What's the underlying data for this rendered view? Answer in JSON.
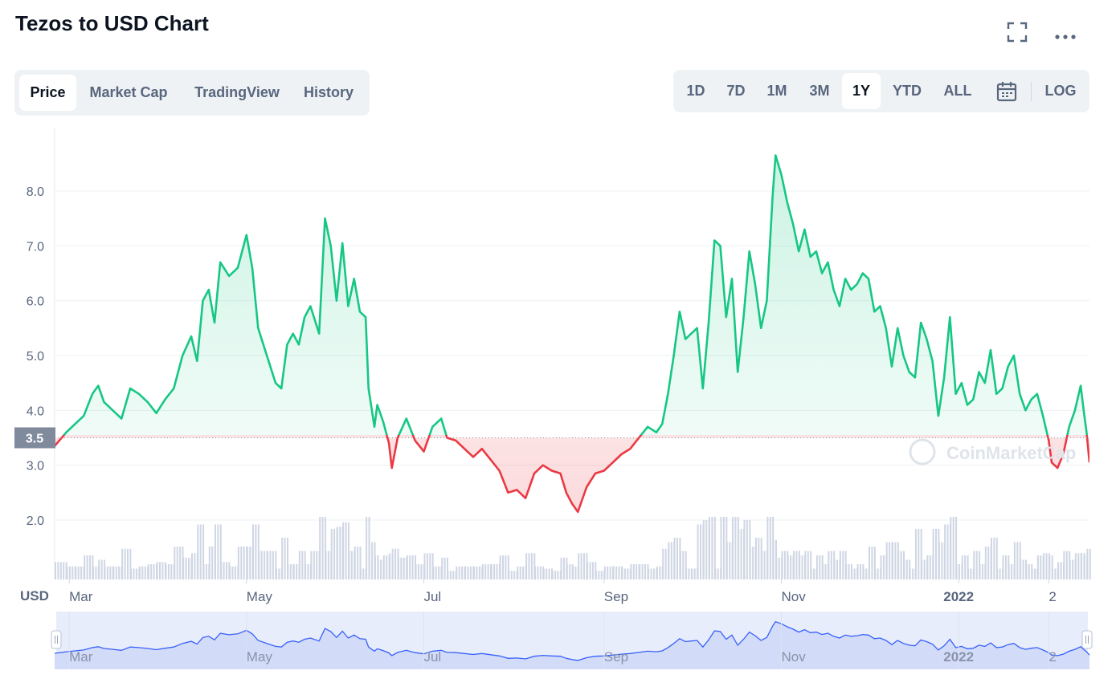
{
  "header": {
    "title": "Tezos to USD Chart",
    "fullscreen_icon": "fullscreen-icon",
    "more_icon": "more-dots-icon"
  },
  "tabs": [
    {
      "label": "Price",
      "active": true
    },
    {
      "label": "Market Cap",
      "active": false
    },
    {
      "label": "TradingView",
      "active": false
    },
    {
      "label": "History",
      "active": false
    }
  ],
  "ranges": [
    {
      "label": "1D",
      "active": false
    },
    {
      "label": "7D",
      "active": false
    },
    {
      "label": "1M",
      "active": false
    },
    {
      "label": "3M",
      "active": false
    },
    {
      "label": "1Y",
      "active": true
    },
    {
      "label": "YTD",
      "active": false
    },
    {
      "label": "ALL",
      "active": false
    }
  ],
  "range_calendar_icon": "calendar-icon",
  "log_label": "LOG",
  "currency_label": "USD",
  "watermark": "CoinMarketCap",
  "colors": {
    "up": "#16c784",
    "down": "#ea3943",
    "navigator_line": "#3861fb",
    "volume": "#cfd6e4"
  },
  "chart_data": {
    "type": "line",
    "title": "Tezos to USD Chart",
    "ylabel": "USD",
    "ylim": [
      1.0,
      9.0
    ],
    "yticks": [
      2.0,
      3.0,
      4.0,
      5.0,
      6.0,
      7.0,
      8.0
    ],
    "ytick_labels": [
      "2.0",
      "3.0",
      "4.0",
      "5.0",
      "6.0",
      "7.0",
      "8.0"
    ],
    "baseline": 3.5,
    "baseline_label": "3.5",
    "xlim": [
      "2021-02-24",
      "2022-02-15"
    ],
    "x_ticks": [
      {
        "date": "2021-03-01",
        "label": "Mar",
        "bold": false
      },
      {
        "date": "2021-05-01",
        "label": "May",
        "bold": false
      },
      {
        "date": "2021-07-01",
        "label": "Jul",
        "bold": false
      },
      {
        "date": "2021-09-01",
        "label": "Sep",
        "bold": false
      },
      {
        "date": "2021-11-01",
        "label": "Nov",
        "bold": false
      },
      {
        "date": "2022-01-01",
        "label": "2022",
        "bold": true
      },
      {
        "date": "2022-02-01",
        "label": "2",
        "bold": false
      }
    ],
    "series": [
      {
        "values": [
          [
            "2021-02-24",
            3.35
          ],
          [
            "2021-02-28",
            3.6
          ],
          [
            "2021-03-03",
            3.75
          ],
          [
            "2021-03-06",
            3.9
          ],
          [
            "2021-03-09",
            4.3
          ],
          [
            "2021-03-11",
            4.45
          ],
          [
            "2021-03-13",
            4.15
          ],
          [
            "2021-03-16",
            4.0
          ],
          [
            "2021-03-19",
            3.85
          ],
          [
            "2021-03-22",
            4.4
          ],
          [
            "2021-03-25",
            4.3
          ],
          [
            "2021-03-28",
            4.15
          ],
          [
            "2021-03-31",
            3.95
          ],
          [
            "2021-04-03",
            4.2
          ],
          [
            "2021-04-06",
            4.4
          ],
          [
            "2021-04-09",
            5.0
          ],
          [
            "2021-04-12",
            5.35
          ],
          [
            "2021-04-14",
            4.9
          ],
          [
            "2021-04-16",
            6.0
          ],
          [
            "2021-04-18",
            6.2
          ],
          [
            "2021-04-20",
            5.6
          ],
          [
            "2021-04-22",
            6.7
          ],
          [
            "2021-04-25",
            6.45
          ],
          [
            "2021-04-28",
            6.6
          ],
          [
            "2021-05-01",
            7.2
          ],
          [
            "2021-05-03",
            6.6
          ],
          [
            "2021-05-05",
            5.5
          ],
          [
            "2021-05-08",
            5.0
          ],
          [
            "2021-05-11",
            4.5
          ],
          [
            "2021-05-13",
            4.4
          ],
          [
            "2021-05-15",
            5.2
          ],
          [
            "2021-05-17",
            5.4
          ],
          [
            "2021-05-19",
            5.2
          ],
          [
            "2021-05-21",
            5.7
          ],
          [
            "2021-05-23",
            5.9
          ],
          [
            "2021-05-26",
            5.4
          ],
          [
            "2021-05-28",
            7.5
          ],
          [
            "2021-05-30",
            7.0
          ],
          [
            "2021-06-01",
            6.0
          ],
          [
            "2021-06-03",
            7.05
          ],
          [
            "2021-06-05",
            5.9
          ],
          [
            "2021-06-07",
            6.4
          ],
          [
            "2021-06-09",
            5.8
          ],
          [
            "2021-06-11",
            5.7
          ],
          [
            "2021-06-12",
            4.4
          ],
          [
            "2021-06-14",
            3.7
          ],
          [
            "2021-06-15",
            4.1
          ],
          [
            "2021-06-17",
            3.8
          ],
          [
            "2021-06-19",
            3.4
          ],
          [
            "2021-06-20",
            2.95
          ],
          [
            "2021-06-22",
            3.5
          ],
          [
            "2021-06-25",
            3.85
          ],
          [
            "2021-06-28",
            3.45
          ],
          [
            "2021-07-01",
            3.25
          ],
          [
            "2021-07-04",
            3.7
          ],
          [
            "2021-07-07",
            3.85
          ],
          [
            "2021-07-09",
            3.5
          ],
          [
            "2021-07-12",
            3.45
          ],
          [
            "2021-07-15",
            3.3
          ],
          [
            "2021-07-18",
            3.15
          ],
          [
            "2021-07-21",
            3.3
          ],
          [
            "2021-07-24",
            3.1
          ],
          [
            "2021-07-27",
            2.9
          ],
          [
            "2021-07-30",
            2.5
          ],
          [
            "2021-08-02",
            2.55
          ],
          [
            "2021-08-05",
            2.4
          ],
          [
            "2021-08-08",
            2.85
          ],
          [
            "2021-08-11",
            3.0
          ],
          [
            "2021-08-14",
            2.9
          ],
          [
            "2021-08-17",
            2.85
          ],
          [
            "2021-08-19",
            2.5
          ],
          [
            "2021-08-21",
            2.3
          ],
          [
            "2021-08-23",
            2.15
          ],
          [
            "2021-08-26",
            2.6
          ],
          [
            "2021-08-29",
            2.85
          ],
          [
            "2021-09-01",
            2.9
          ],
          [
            "2021-09-04",
            3.05
          ],
          [
            "2021-09-07",
            3.2
          ],
          [
            "2021-09-10",
            3.3
          ],
          [
            "2021-09-13",
            3.5
          ],
          [
            "2021-09-16",
            3.7
          ],
          [
            "2021-09-19",
            3.6
          ],
          [
            "2021-09-21",
            3.75
          ],
          [
            "2021-09-23",
            4.3
          ],
          [
            "2021-09-25",
            5.0
          ],
          [
            "2021-09-27",
            5.8
          ],
          [
            "2021-09-29",
            5.3
          ],
          [
            "2021-10-01",
            5.4
          ],
          [
            "2021-10-03",
            5.5
          ],
          [
            "2021-10-05",
            4.4
          ],
          [
            "2021-10-07",
            5.6
          ],
          [
            "2021-10-09",
            7.1
          ],
          [
            "2021-10-11",
            7.0
          ],
          [
            "2021-10-13",
            5.7
          ],
          [
            "2021-10-15",
            6.4
          ],
          [
            "2021-10-17",
            4.7
          ],
          [
            "2021-10-19",
            5.7
          ],
          [
            "2021-10-21",
            6.9
          ],
          [
            "2021-10-23",
            6.3
          ],
          [
            "2021-10-25",
            5.5
          ],
          [
            "2021-10-27",
            6.0
          ],
          [
            "2021-10-29",
            7.9
          ],
          [
            "2021-10-30",
            8.65
          ],
          [
            "2021-11-01",
            8.3
          ],
          [
            "2021-11-03",
            7.8
          ],
          [
            "2021-11-05",
            7.4
          ],
          [
            "2021-11-07",
            6.9
          ],
          [
            "2021-11-09",
            7.3
          ],
          [
            "2021-11-11",
            6.8
          ],
          [
            "2021-11-13",
            6.9
          ],
          [
            "2021-11-15",
            6.5
          ],
          [
            "2021-11-17",
            6.7
          ],
          [
            "2021-11-19",
            6.2
          ],
          [
            "2021-11-21",
            5.9
          ],
          [
            "2021-11-23",
            6.4
          ],
          [
            "2021-11-25",
            6.2
          ],
          [
            "2021-11-27",
            6.3
          ],
          [
            "2021-11-29",
            6.5
          ],
          [
            "2021-12-01",
            6.4
          ],
          [
            "2021-12-03",
            5.8
          ],
          [
            "2021-12-05",
            5.9
          ],
          [
            "2021-12-07",
            5.5
          ],
          [
            "2021-12-09",
            4.8
          ],
          [
            "2021-12-11",
            5.5
          ],
          [
            "2021-12-13",
            5.0
          ],
          [
            "2021-12-15",
            4.7
          ],
          [
            "2021-12-17",
            4.6
          ],
          [
            "2021-12-19",
            5.6
          ],
          [
            "2021-12-21",
            5.3
          ],
          [
            "2021-12-23",
            4.9
          ],
          [
            "2021-12-25",
            3.9
          ],
          [
            "2021-12-27",
            4.6
          ],
          [
            "2021-12-29",
            5.7
          ],
          [
            "2021-12-31",
            4.3
          ],
          [
            "2022-01-02",
            4.5
          ],
          [
            "2022-01-04",
            4.1
          ],
          [
            "2022-01-06",
            4.2
          ],
          [
            "2022-01-08",
            4.7
          ],
          [
            "2022-01-10",
            4.5
          ],
          [
            "2022-01-12",
            5.1
          ],
          [
            "2022-01-14",
            4.3
          ],
          [
            "2022-01-16",
            4.4
          ],
          [
            "2022-01-18",
            4.8
          ],
          [
            "2022-01-20",
            5.0
          ],
          [
            "2022-01-22",
            4.3
          ],
          [
            "2022-01-24",
            4.0
          ],
          [
            "2022-01-26",
            4.2
          ],
          [
            "2022-01-28",
            4.3
          ],
          [
            "2022-01-30",
            3.9
          ],
          [
            "2022-02-01",
            3.45
          ],
          [
            "2022-02-02",
            3.05
          ],
          [
            "2022-02-04",
            2.95
          ],
          [
            "2022-02-06",
            3.2
          ],
          [
            "2022-02-08",
            3.7
          ],
          [
            "2022-02-10",
            4.0
          ],
          [
            "2022-02-12",
            4.45
          ],
          [
            "2022-02-13",
            4.0
          ],
          [
            "2022-02-14",
            3.6
          ],
          [
            "2022-02-15",
            3.05
          ]
        ]
      }
    ]
  }
}
